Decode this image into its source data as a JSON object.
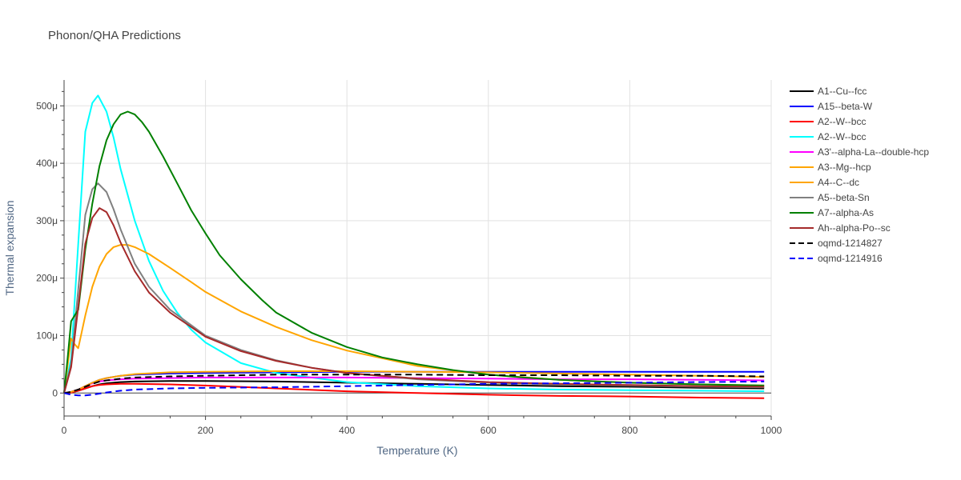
{
  "chart_data": {
    "type": "line",
    "title": "Phonon/QHA Predictions",
    "xlabel": "Temperature (K)",
    "ylabel": "Thermal expansion",
    "xlim": [
      0,
      1000
    ],
    "ylim": [
      -40,
      545
    ],
    "x_ticks": [
      0,
      200,
      400,
      600,
      800,
      1000
    ],
    "x_tick_labels": [
      "0",
      "200",
      "400",
      "600",
      "800",
      "1000"
    ],
    "y_ticks": [
      0,
      100,
      200,
      300,
      400,
      500
    ],
    "y_tick_labels": [
      "0",
      "100μ",
      "200μ",
      "300μ",
      "400μ",
      "500μ"
    ],
    "y_unit_scale": "1e-6",
    "grid": true,
    "legend_position": "right",
    "series": [
      {
        "name": "A1--Cu--fcc",
        "color": "#000000",
        "dash": "solid",
        "x": [
          0,
          10,
          20,
          30,
          40,
          50,
          60,
          80,
          100,
          150,
          200,
          300,
          400,
          500,
          600,
          700,
          800,
          900,
          990
        ],
        "y": [
          0,
          1,
          4,
          8,
          12,
          15,
          17,
          19,
          20,
          21,
          21,
          20,
          18,
          16,
          14,
          12,
          11,
          9,
          8
        ]
      },
      {
        "name": "A15--beta-W",
        "color": "#0000ff",
        "dash": "solid",
        "x": [
          0,
          10,
          20,
          30,
          40,
          50,
          60,
          80,
          100,
          150,
          200,
          300,
          400,
          500,
          600,
          700,
          800,
          900,
          990
        ],
        "y": [
          0,
          2,
          6,
          12,
          18,
          23,
          26,
          30,
          32,
          34,
          35,
          36,
          37,
          37,
          37,
          37,
          37,
          37,
          37
        ]
      },
      {
        "name": "A2--W--bcc",
        "color": "#ff0000",
        "dash": "solid",
        "x": [
          0,
          10,
          20,
          30,
          40,
          50,
          60,
          80,
          100,
          150,
          200,
          300,
          400,
          500,
          600,
          700,
          800,
          900,
          990
        ],
        "y": [
          0,
          1,
          4,
          8,
          12,
          14,
          15,
          16,
          16,
          15,
          13,
          8,
          3,
          0,
          -3,
          -5,
          -6,
          -8,
          -9
        ]
      },
      {
        "name": "A2--W--bcc",
        "color": "#00ffff",
        "dash": "solid",
        "x": [
          0,
          10,
          20,
          30,
          40,
          48,
          60,
          70,
          80,
          100,
          120,
          140,
          160,
          180,
          200,
          250,
          300,
          400,
          500,
          600,
          700,
          800,
          900,
          990
        ],
        "y": [
          0,
          60,
          260,
          455,
          505,
          518,
          490,
          445,
          390,
          300,
          230,
          178,
          140,
          110,
          88,
          52,
          35,
          19,
          12,
          8,
          6,
          5,
          4,
          3
        ]
      },
      {
        "name": "A3'--alpha-La--double-hcp",
        "color": "#ff00ff",
        "dash": "solid",
        "x": [
          0,
          10,
          20,
          30,
          40,
          50,
          60,
          80,
          100,
          150,
          200,
          300,
          400,
          500,
          600,
          700,
          800,
          900,
          990
        ],
        "y": [
          0,
          2,
          6,
          12,
          17,
          20,
          22,
          24,
          25,
          26,
          27,
          27,
          27,
          26,
          25,
          24,
          24,
          23,
          22
        ]
      },
      {
        "name": "A3--Mg--hcp",
        "color": "#ffa500",
        "dash": "solid",
        "x": [
          0,
          10,
          20,
          30,
          40,
          50,
          60,
          80,
          100,
          150,
          200,
          300,
          400,
          500,
          600,
          700,
          800,
          900,
          990
        ],
        "y": [
          0,
          2,
          6,
          12,
          18,
          23,
          26,
          30,
          33,
          36,
          37,
          38,
          38,
          37,
          36,
          34,
          32,
          30,
          28
        ]
      },
      {
        "name": "A4--C--dc",
        "color": "#ffa500",
        "dash": "solid",
        "x": [
          0,
          10,
          15,
          20,
          30,
          40,
          50,
          60,
          70,
          80,
          90,
          100,
          120,
          150,
          180,
          200,
          250,
          300,
          350,
          400,
          500,
          600,
          700,
          800,
          900,
          990
        ],
        "y": [
          0,
          95,
          85,
          78,
          135,
          185,
          220,
          242,
          254,
          258,
          258,
          254,
          242,
          218,
          193,
          176,
          142,
          115,
          92,
          74,
          47,
          32,
          23,
          18,
          15,
          13
        ]
      },
      {
        "name": "A5--beta-Sn",
        "color": "#808080",
        "dash": "solid",
        "x": [
          0,
          10,
          20,
          30,
          40,
          48,
          60,
          70,
          80,
          100,
          120,
          150,
          200,
          250,
          300,
          350,
          400,
          500,
          600,
          700,
          800,
          900,
          990
        ],
        "y": [
          0,
          50,
          180,
          310,
          355,
          365,
          350,
          320,
          285,
          225,
          185,
          145,
          100,
          75,
          57,
          44,
          35,
          24,
          18,
          15,
          13,
          11,
          10
        ]
      },
      {
        "name": "A7--alpha-As",
        "color": "#008000",
        "dash": "solid",
        "x": [
          0,
          5,
          10,
          20,
          30,
          40,
          50,
          60,
          70,
          80,
          90,
          100,
          110,
          120,
          140,
          160,
          180,
          200,
          220,
          250,
          280,
          300,
          350,
          400,
          450,
          500,
          550,
          600,
          650,
          700,
          800,
          900,
          990
        ],
        "y": [
          0,
          60,
          125,
          145,
          250,
          330,
          395,
          440,
          468,
          485,
          490,
          485,
          472,
          455,
          412,
          365,
          318,
          278,
          240,
          198,
          162,
          140,
          105,
          80,
          62,
          50,
          40,
          32,
          27,
          23,
          18,
          15,
          13
        ]
      },
      {
        "name": "Ah--alpha-Po--sc",
        "color": "#a52a2a",
        "dash": "solid",
        "x": [
          0,
          10,
          20,
          30,
          40,
          50,
          60,
          70,
          80,
          100,
          120,
          150,
          200,
          250,
          300,
          350,
          400,
          500,
          600,
          700,
          800,
          900,
          990
        ],
        "y": [
          0,
          45,
          150,
          260,
          305,
          322,
          315,
          292,
          262,
          212,
          175,
          140,
          98,
          73,
          56,
          44,
          35,
          25,
          19,
          16,
          14,
          12,
          11
        ]
      },
      {
        "name": "oqmd-1214827",
        "color": "#000000",
        "dash": "dash",
        "x": [
          0,
          10,
          20,
          30,
          40,
          50,
          60,
          80,
          100,
          150,
          200,
          300,
          400,
          500,
          600,
          700,
          800,
          900,
          990
        ],
        "y": [
          0,
          2,
          6,
          11,
          16,
          20,
          22,
          25,
          27,
          29,
          30,
          32,
          32,
          32,
          31,
          31,
          30,
          30,
          29
        ]
      },
      {
        "name": "oqmd-1214916",
        "color": "#0000ff",
        "dash": "dash",
        "x": [
          0,
          10,
          20,
          30,
          40,
          50,
          60,
          80,
          100,
          150,
          200,
          300,
          400,
          500,
          600,
          700,
          800,
          900,
          990
        ],
        "y": [
          0,
          -3,
          -4,
          -4,
          -3,
          -1,
          1,
          4,
          6,
          8,
          9,
          10,
          12,
          14,
          16,
          17,
          18,
          19,
          20
        ]
      }
    ]
  }
}
